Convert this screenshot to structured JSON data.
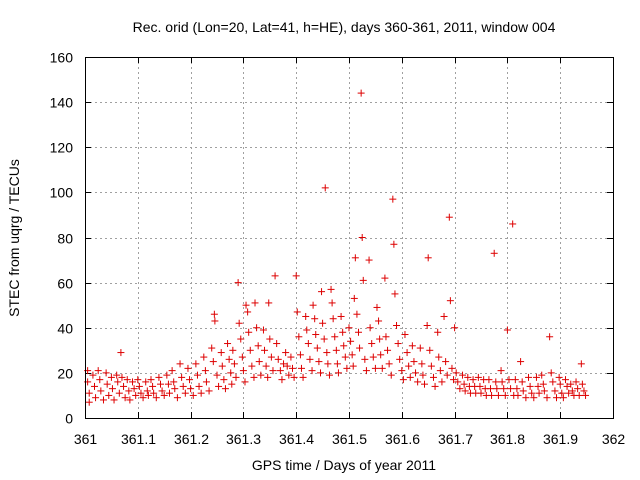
{
  "chart_data": {
    "type": "scatter",
    "title": "Rec. orid (Lon=20, Lat=41, h=HE), days 360-361, 2011, window 004",
    "xlabel": "GPS time / Days of year 2011",
    "ylabel": "STEC from uqrg / TECUs",
    "xlim": [
      361,
      362
    ],
    "ylim": [
      0,
      160
    ],
    "xticks": [
      "361",
      "361.1",
      "361.2",
      "361.3",
      "361.4",
      "361.5",
      "361.6",
      "361.7",
      "361.8",
      "361.9",
      "362"
    ],
    "yticks": [
      "0",
      "20",
      "40",
      "60",
      "80",
      "100",
      "120",
      "140",
      "160"
    ],
    "grid": true,
    "marker": "+",
    "color": "#dd0000",
    "series": [
      {
        "name": "STEC",
        "points": [
          [
            361.005,
            21
          ],
          [
            361.005,
            16
          ],
          [
            361.008,
            11
          ],
          [
            361.008,
            7
          ],
          [
            361.015,
            19
          ],
          [
            361.018,
            14
          ],
          [
            361.02,
            9
          ],
          [
            361.025,
            21
          ],
          [
            361.028,
            17
          ],
          [
            361.03,
            12
          ],
          [
            361.035,
            8
          ],
          [
            361.04,
            20
          ],
          [
            361.042,
            15
          ],
          [
            361.045,
            10
          ],
          [
            361.05,
            18
          ],
          [
            361.052,
            13
          ],
          [
            361.055,
            8
          ],
          [
            361.06,
            19
          ],
          [
            361.062,
            16
          ],
          [
            361.065,
            11
          ],
          [
            361.068,
            29
          ],
          [
            361.07,
            18
          ],
          [
            361.073,
            14
          ],
          [
            361.076,
            9
          ],
          [
            361.08,
            17
          ],
          [
            361.083,
            12
          ],
          [
            361.085,
            8
          ],
          [
            361.09,
            16
          ],
          [
            361.093,
            13
          ],
          [
            361.096,
            10
          ],
          [
            361.1,
            17
          ],
          [
            361.103,
            14
          ],
          [
            361.106,
            11
          ],
          [
            361.11,
            9
          ],
          [
            361.115,
            16
          ],
          [
            361.118,
            12
          ],
          [
            361.12,
            10
          ],
          [
            361.125,
            17
          ],
          [
            361.128,
            14
          ],
          [
            361.13,
            11
          ],
          [
            361.135,
            9
          ],
          [
            361.14,
            18
          ],
          [
            361.143,
            15
          ],
          [
            361.146,
            12
          ],
          [
            361.15,
            10
          ],
          [
            361.155,
            19
          ],
          [
            361.158,
            15
          ],
          [
            361.16,
            11
          ],
          [
            361.165,
            21
          ],
          [
            361.168,
            16
          ],
          [
            361.17,
            13
          ],
          [
            361.175,
            9
          ],
          [
            361.18,
            24
          ],
          [
            361.183,
            18
          ],
          [
            361.186,
            14
          ],
          [
            361.19,
            11
          ],
          [
            361.195,
            22
          ],
          [
            361.198,
            17
          ],
          [
            361.2,
            13
          ],
          [
            361.205,
            10
          ],
          [
            361.21,
            24
          ],
          [
            361.213,
            19
          ],
          [
            361.216,
            14
          ],
          [
            361.22,
            11
          ],
          [
            361.225,
            27
          ],
          [
            361.228,
            21
          ],
          [
            361.23,
            16
          ],
          [
            361.235,
            12
          ],
          [
            361.24,
            31
          ],
          [
            361.243,
            25
          ],
          [
            361.245,
            46
          ],
          [
            361.246,
            43
          ],
          [
            361.25,
            19
          ],
          [
            361.253,
            14
          ],
          [
            361.258,
            29
          ],
          [
            361.26,
            23
          ],
          [
            361.263,
            17
          ],
          [
            361.266,
            13
          ],
          [
            361.27,
            33
          ],
          [
            361.273,
            26
          ],
          [
            361.276,
            20
          ],
          [
            361.278,
            15
          ],
          [
            361.28,
            30
          ],
          [
            361.283,
            24
          ],
          [
            361.286,
            18
          ],
          [
            361.29,
            60
          ],
          [
            361.292,
            42
          ],
          [
            361.295,
            35
          ],
          [
            361.298,
            27
          ],
          [
            361.3,
            21
          ],
          [
            361.303,
            16
          ],
          [
            361.305,
            50
          ],
          [
            361.308,
            47
          ],
          [
            361.31,
            38
          ],
          [
            361.313,
            30
          ],
          [
            361.316,
            23
          ],
          [
            361.32,
            18
          ],
          [
            361.322,
            51
          ],
          [
            361.325,
            40
          ],
          [
            361.328,
            32
          ],
          [
            361.33,
            25
          ],
          [
            361.333,
            19
          ],
          [
            361.338,
            39
          ],
          [
            361.34,
            30
          ],
          [
            361.343,
            23
          ],
          [
            361.346,
            18
          ],
          [
            361.348,
            51
          ],
          [
            361.35,
            35
          ],
          [
            361.353,
            27
          ],
          [
            361.356,
            21
          ],
          [
            361.36,
            63
          ],
          [
            361.363,
            33
          ],
          [
            361.366,
            26
          ],
          [
            361.37,
            21
          ],
          [
            361.373,
            17
          ],
          [
            361.376,
            24
          ],
          [
            361.38,
            29
          ],
          [
            361.383,
            23
          ],
          [
            361.386,
            19
          ],
          [
            361.39,
            27
          ],
          [
            361.393,
            22
          ],
          [
            361.396,
            18
          ],
          [
            361.4,
            63
          ],
          [
            361.402,
            47
          ],
          [
            361.405,
            36
          ],
          [
            361.408,
            28
          ],
          [
            361.41,
            22
          ],
          [
            361.413,
            18
          ],
          [
            361.418,
            45
          ],
          [
            361.42,
            39
          ],
          [
            361.423,
            33
          ],
          [
            361.426,
            26
          ],
          [
            361.43,
            21
          ],
          [
            361.432,
            50
          ],
          [
            361.435,
            44
          ],
          [
            361.437,
            37
          ],
          [
            361.44,
            31
          ],
          [
            361.443,
            25
          ],
          [
            361.446,
            20
          ],
          [
            361.448,
            56
          ],
          [
            361.45,
            42
          ],
          [
            361.453,
            35
          ],
          [
            361.455,
            102
          ],
          [
            361.458,
            29
          ],
          [
            361.46,
            24
          ],
          [
            361.463,
            19
          ],
          [
            361.466,
            57
          ],
          [
            361.468,
            51
          ],
          [
            361.47,
            44
          ],
          [
            361.473,
            36
          ],
          [
            361.476,
            30
          ],
          [
            361.478,
            24
          ],
          [
            361.48,
            20
          ],
          [
            361.485,
            45
          ],
          [
            361.488,
            38
          ],
          [
            361.49,
            32
          ],
          [
            361.493,
            27
          ],
          [
            361.496,
            22
          ],
          [
            361.5,
            40
          ],
          [
            361.503,
            34
          ],
          [
            361.506,
            28
          ],
          [
            361.508,
            23
          ],
          [
            361.51,
            53
          ],
          [
            361.512,
            71
          ],
          [
            361.515,
            46
          ],
          [
            361.518,
            38
          ],
          [
            361.52,
            31
          ],
          [
            361.523,
            144
          ],
          [
            361.525,
            80
          ],
          [
            361.527,
            61
          ],
          [
            361.53,
            26
          ],
          [
            361.533,
            21
          ],
          [
            361.538,
            70
          ],
          [
            361.54,
            40
          ],
          [
            361.543,
            33
          ],
          [
            361.546,
            27
          ],
          [
            361.55,
            22
          ],
          [
            361.553,
            49
          ],
          [
            361.556,
            43
          ],
          [
            361.558,
            35
          ],
          [
            361.56,
            28
          ],
          [
            361.563,
            22
          ],
          [
            361.568,
            62
          ],
          [
            361.57,
            36
          ],
          [
            361.573,
            30
          ],
          [
            361.576,
            24
          ],
          [
            361.58,
            19
          ],
          [
            361.583,
            97
          ],
          [
            361.585,
            77
          ],
          [
            361.587,
            55
          ],
          [
            361.59,
            41
          ],
          [
            361.593,
            33
          ],
          [
            361.596,
            26
          ],
          [
            361.6,
            21
          ],
          [
            361.603,
            17
          ],
          [
            361.606,
            37
          ],
          [
            361.61,
            29
          ],
          [
            361.613,
            23
          ],
          [
            361.616,
            18
          ],
          [
            361.62,
            32
          ],
          [
            361.623,
            25
          ],
          [
            361.626,
            20
          ],
          [
            361.63,
            16
          ],
          [
            361.635,
            31
          ],
          [
            361.638,
            24
          ],
          [
            361.64,
            19
          ],
          [
            361.643,
            15
          ],
          [
            361.648,
            41
          ],
          [
            361.65,
            71
          ],
          [
            361.653,
            30
          ],
          [
            361.656,
            23
          ],
          [
            361.66,
            18
          ],
          [
            361.663,
            14
          ],
          [
            361.668,
            38
          ],
          [
            361.67,
            27
          ],
          [
            361.673,
            21
          ],
          [
            361.676,
            16
          ],
          [
            361.68,
            45
          ],
          [
            361.683,
            25
          ],
          [
            361.686,
            19
          ],
          [
            361.69,
            89
          ],
          [
            361.692,
            52
          ],
          [
            361.695,
            22
          ],
          [
            361.698,
            17
          ],
          [
            361.7,
            40
          ],
          [
            361.703,
            20
          ],
          [
            361.706,
            16
          ],
          [
            361.71,
            13
          ],
          [
            361.715,
            19
          ],
          [
            361.718,
            15
          ],
          [
            361.72,
            12
          ],
          [
            361.725,
            18
          ],
          [
            361.728,
            14
          ],
          [
            361.73,
            11
          ],
          [
            361.735,
            17
          ],
          [
            361.738,
            14
          ],
          [
            361.74,
            11
          ],
          [
            361.745,
            18
          ],
          [
            361.748,
            14
          ],
          [
            361.75,
            11
          ],
          [
            361.755,
            17
          ],
          [
            361.758,
            13
          ],
          [
            361.76,
            10
          ],
          [
            361.765,
            17
          ],
          [
            361.768,
            13
          ],
          [
            361.77,
            10
          ],
          [
            361.775,
            73
          ],
          [
            361.778,
            16
          ],
          [
            361.78,
            13
          ],
          [
            361.783,
            10
          ],
          [
            361.788,
            21
          ],
          [
            361.79,
            16
          ],
          [
            361.793,
            13
          ],
          [
            361.796,
            10
          ],
          [
            361.8,
            39
          ],
          [
            361.803,
            17
          ],
          [
            361.806,
            13
          ],
          [
            361.81,
            86
          ],
          [
            361.812,
            10
          ],
          [
            361.815,
            17
          ],
          [
            361.818,
            13
          ],
          [
            361.82,
            10
          ],
          [
            361.825,
            25
          ],
          [
            361.828,
            16
          ],
          [
            361.83,
            12
          ],
          [
            361.835,
            9
          ],
          [
            361.84,
            18
          ],
          [
            361.843,
            14
          ],
          [
            361.846,
            11
          ],
          [
            361.85,
            9
          ],
          [
            361.855,
            18
          ],
          [
            361.858,
            14
          ],
          [
            361.86,
            11
          ],
          [
            361.865,
            19
          ],
          [
            361.868,
            15
          ],
          [
            361.87,
            12
          ],
          [
            361.875,
            9
          ],
          [
            361.88,
            36
          ],
          [
            361.883,
            20
          ],
          [
            361.886,
            16
          ],
          [
            361.89,
            12
          ],
          [
            361.893,
            9
          ],
          [
            361.898,
            18
          ],
          [
            361.9,
            15
          ],
          [
            361.903,
            11
          ],
          [
            361.906,
            9
          ],
          [
            361.91,
            17
          ],
          [
            361.913,
            14
          ],
          [
            361.916,
            11
          ],
          [
            361.92,
            15
          ],
          [
            361.923,
            12
          ],
          [
            361.926,
            10
          ],
          [
            361.93,
            16
          ],
          [
            361.933,
            13
          ],
          [
            361.936,
            10
          ],
          [
            361.94,
            24
          ],
          [
            361.942,
            15
          ],
          [
            361.945,
            12
          ],
          [
            361.948,
            10
          ]
        ]
      }
    ]
  }
}
